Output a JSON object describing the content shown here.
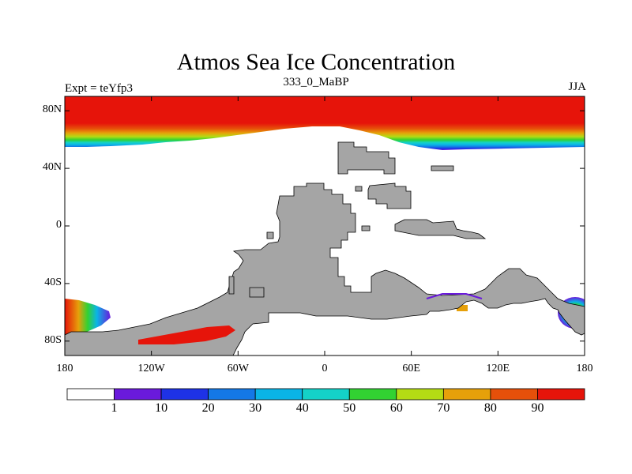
{
  "title": "Atmos Sea Ice Concentration",
  "left_string": "Expt = teYfp3",
  "center_string": "333_0_MaBP",
  "right_string": "JJA",
  "lat_ticks": [
    {
      "label": "80N",
      "value": 80
    },
    {
      "label": "40N",
      "value": 40
    },
    {
      "label": "0",
      "value": 0
    },
    {
      "label": "40S",
      "value": -40
    },
    {
      "label": "80S",
      "value": -80
    }
  ],
  "lon_ticks": [
    {
      "label": "180",
      "value": -180
    },
    {
      "label": "120W",
      "value": -120
    },
    {
      "label": "60W",
      "value": -60
    },
    {
      "label": "0",
      "value": 0
    },
    {
      "label": "60E",
      "value": 60
    },
    {
      "label": "120E",
      "value": 120
    },
    {
      "label": "180",
      "value": 180
    }
  ],
  "colorbar": {
    "levels": [
      "1",
      "10",
      "20",
      "30",
      "40",
      "50",
      "60",
      "70",
      "80",
      "90"
    ],
    "colors": [
      "#ffffff",
      "#6a1adc",
      "#1e32e6",
      "#1478e6",
      "#0ab4e6",
      "#14d2c8",
      "#32d232",
      "#b4dc14",
      "#e6a00a",
      "#e6500a",
      "#e6140a"
    ]
  },
  "colors": {
    "land": "#a5a5a5",
    "ocean": "#ffffff"
  }
}
